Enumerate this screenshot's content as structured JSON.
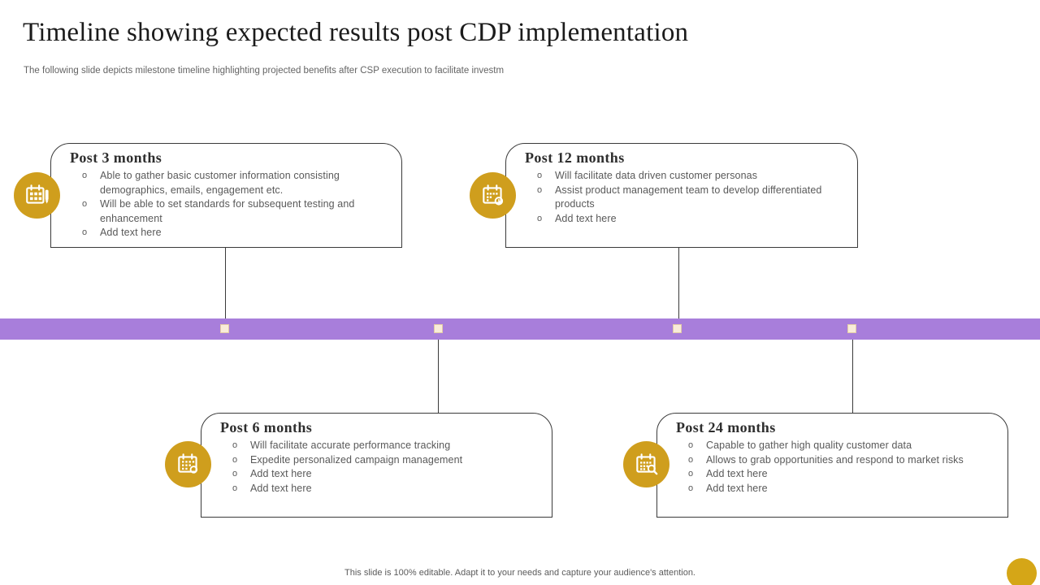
{
  "slide": {
    "title": "Timeline showing expected results post CDP implementation",
    "subtitle": "The following slide depicts milestone timeline highlighting projected benefits after CSP execution to facilitate investm",
    "footer": "This slide is 100% editable. Adapt it to your needs and capture your audience's attention."
  },
  "colors": {
    "timeline_bar": "#a87edb",
    "marker_fill": "#f9ecd9",
    "marker_border": "#e3cda6",
    "icon_gold": "#cf9e1d",
    "corner_circle": "#d5a617",
    "card_border": "#3a3a3a",
    "heading_text": "#2e2e2e",
    "body_text": "#595959"
  },
  "milestones": [
    {
      "title": "Post 3 months",
      "icon": "calendar-edit-icon",
      "bullets": [
        "Able to gather basic customer information consisting demographics, emails, engagement etc.",
        "Will be able to set standards for subsequent testing and enhancement",
        "Add text here"
      ]
    },
    {
      "title": "Post 12 months",
      "icon": "calendar-clock-icon",
      "bullets": [
        "Will facilitate data driven customer personas",
        "Assist product management team to develop differentiated products",
        "Add text here"
      ]
    },
    {
      "title": "Post 6 months",
      "icon": "calendar-event-icon",
      "bullets": [
        "Will facilitate accurate performance tracking",
        "Expedite personalized campaign management",
        "Add text here",
        "Add text here"
      ]
    },
    {
      "title": "Post 24 months",
      "icon": "calendar-search-icon",
      "bullets": [
        "Capable to gather high quality customer data",
        "Allows to grab opportunities and respond to market risks",
        "Add text here",
        "Add text here"
      ]
    }
  ]
}
